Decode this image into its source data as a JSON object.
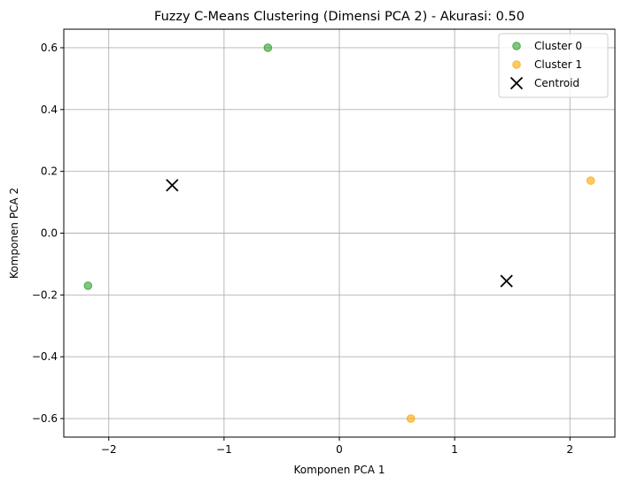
{
  "chart_data": {
    "type": "scatter",
    "title": "Fuzzy C-Means Clustering (Dimensi PCA 2) - Akurasi: 0.50",
    "xlabel": "Komponen PCA 1",
    "ylabel": "Komponen PCA 2",
    "xlim": [
      -2.39,
      2.39
    ],
    "ylim": [
      -0.66,
      0.66
    ],
    "x_ticks": [
      -2,
      -1,
      0,
      1,
      2
    ],
    "y_ticks": [
      -0.6,
      -0.4,
      -0.2,
      0.0,
      0.2,
      0.4,
      0.6
    ],
    "x_tick_labels": [
      "−2",
      "−1",
      "0",
      "1",
      "2"
    ],
    "y_tick_labels": [
      "−0.6",
      "−0.4",
      "−0.2",
      "0.0",
      "0.2",
      "0.4",
      "0.6"
    ],
    "grid": true,
    "legend_position": "top-right",
    "series": [
      {
        "name": "Cluster 0",
        "marker": "circle",
        "color": "#2ca02c",
        "points": [
          {
            "x": -2.18,
            "y": -0.17
          },
          {
            "x": -0.62,
            "y": 0.6
          }
        ]
      },
      {
        "name": "Cluster 1",
        "marker": "circle",
        "color": "#ffa500",
        "points": [
          {
            "x": 0.62,
            "y": -0.6
          },
          {
            "x": 2.18,
            "y": 0.17
          }
        ]
      },
      {
        "name": "Centroid",
        "marker": "x",
        "color": "#000000",
        "points": [
          {
            "x": -1.45,
            "y": 0.155
          },
          {
            "x": 1.45,
            "y": -0.155
          }
        ]
      }
    ]
  }
}
